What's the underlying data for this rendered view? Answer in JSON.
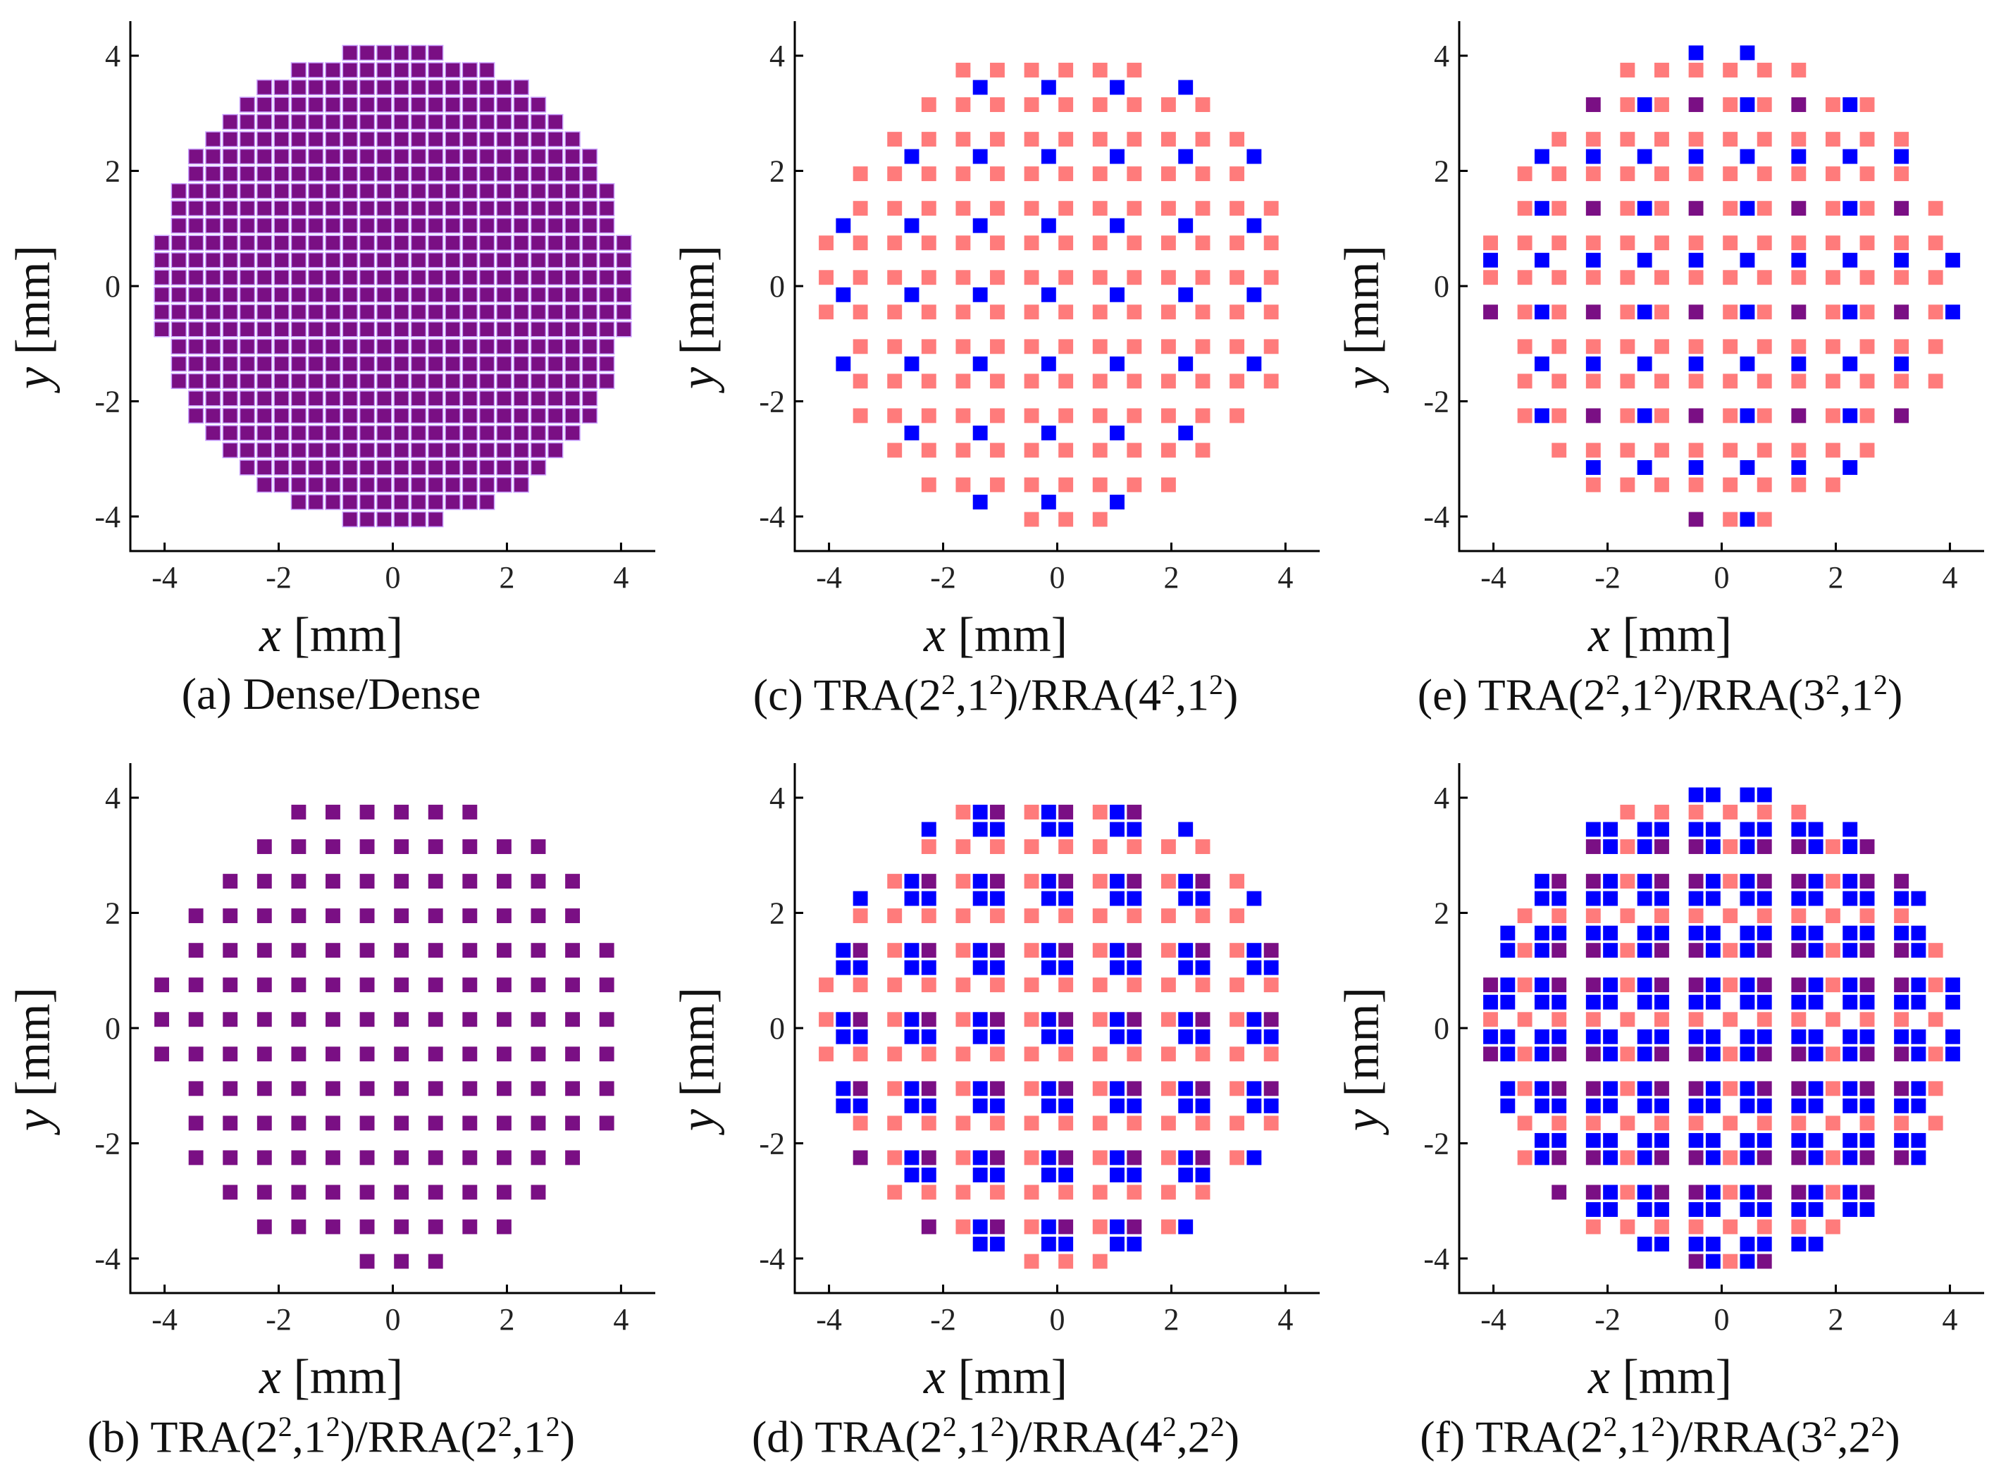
{
  "figure": {
    "unit_label": "[mm]",
    "x_symbol": "x",
    "y_symbol": "y",
    "tick_labels": [
      "-4",
      "-2",
      "0",
      "2",
      "4"
    ]
  },
  "colors": {
    "dense_element": "#7a0f84",
    "element_outline": "#c8a0ff",
    "tra_only": "#ff7b7b",
    "rra_only": "#0000ff",
    "both": "#7a0f84",
    "axis": "#000000"
  },
  "chart_data": [
    {
      "type": "scatter",
      "label": "(a) Dense/Dense",
      "pattern": "dense",
      "caption": {
        "prefix": "(a) Dense/Dense",
        "tra": "",
        "rra": ""
      },
      "xlabel": "x [mm]",
      "ylabel": "y [mm]",
      "xlim": [
        -4.6,
        4.6
      ],
      "ylim": [
        -4.6,
        4.6
      ],
      "aperture_radius_mm": 4.15,
      "pitch_mm": 0.3,
      "legend": "none",
      "grid": false
    },
    {
      "type": "scatter",
      "label": "(b) TRA(2²,1²)/RRA(2²,1²)",
      "pattern": "equal",
      "caption": {
        "prefix": "(b) TRA(2",
        "mid": ",1",
        "mid2": ")/RRA(2",
        "tail": ",1",
        "end": ")"
      },
      "xlabel": "x [mm]",
      "ylabel": "y [mm]",
      "xlim": [
        -4.6,
        4.6
      ],
      "ylim": [
        -4.6,
        4.6
      ],
      "tra_period": 2,
      "rra_period": 2,
      "rra_block": 1,
      "aperture_radius_mm": 4.15,
      "pitch_mm": 0.3
    },
    {
      "type": "scatter",
      "label": "(c) TRA(2²,1²)/RRA(4²,1²)",
      "pattern": "c",
      "caption": {
        "prefix": "(c) TRA(2",
        "mid": ",1",
        "mid2": ")/RRA(4",
        "tail": ",1",
        "end": ")"
      },
      "xlabel": "x [mm]",
      "ylabel": "y [mm]",
      "xlim": [
        -4.6,
        4.6
      ],
      "ylim": [
        -4.6,
        4.6
      ],
      "tra_period": 2,
      "rra_period": 4,
      "rra_block": 1,
      "aperture_radius_mm": 4.15,
      "pitch_mm": 0.3
    },
    {
      "type": "scatter",
      "label": "(d) TRA(2²,1²)/RRA(4²,2²)",
      "pattern": "d",
      "caption": {
        "prefix": "(d) TRA(2",
        "mid": ",1",
        "mid2": ")/RRA(4",
        "tail": ",2",
        "end": ")"
      },
      "xlabel": "x [mm]",
      "ylabel": "y [mm]",
      "xlim": [
        -4.6,
        4.6
      ],
      "ylim": [
        -4.6,
        4.6
      ],
      "tra_period": 2,
      "rra_period": 4,
      "rra_block": 2,
      "aperture_radius_mm": 4.15,
      "pitch_mm": 0.3
    },
    {
      "type": "scatter",
      "label": "(e) TRA(2²,1²)/RRA(3²,1²)",
      "pattern": "e",
      "caption": {
        "prefix": "(e) TRA(2",
        "mid": ",1",
        "mid2": ")/RRA(3",
        "tail": ",1",
        "end": ")"
      },
      "xlabel": "x [mm]",
      "ylabel": "y [mm]",
      "xlim": [
        -4.6,
        4.6
      ],
      "ylim": [
        -4.6,
        4.6
      ],
      "tra_period": 2,
      "rra_period": 3,
      "rra_block": 1,
      "aperture_radius_mm": 4.15,
      "pitch_mm": 0.3
    },
    {
      "type": "scatter",
      "label": "(f) TRA(2²,1²)/RRA(3²,2²)",
      "pattern": "f",
      "caption": {
        "prefix": "(f) TRA(2",
        "mid": ",1",
        "mid2": ")/RRA(3",
        "tail": ",2",
        "end": ")"
      },
      "xlabel": "x [mm]",
      "ylabel": "y [mm]",
      "xlim": [
        -4.6,
        4.6
      ],
      "ylim": [
        -4.6,
        4.6
      ],
      "tra_period": 2,
      "rra_period": 3,
      "rra_block": 2,
      "aperture_radius_mm": 4.15,
      "pitch_mm": 0.3
    }
  ]
}
